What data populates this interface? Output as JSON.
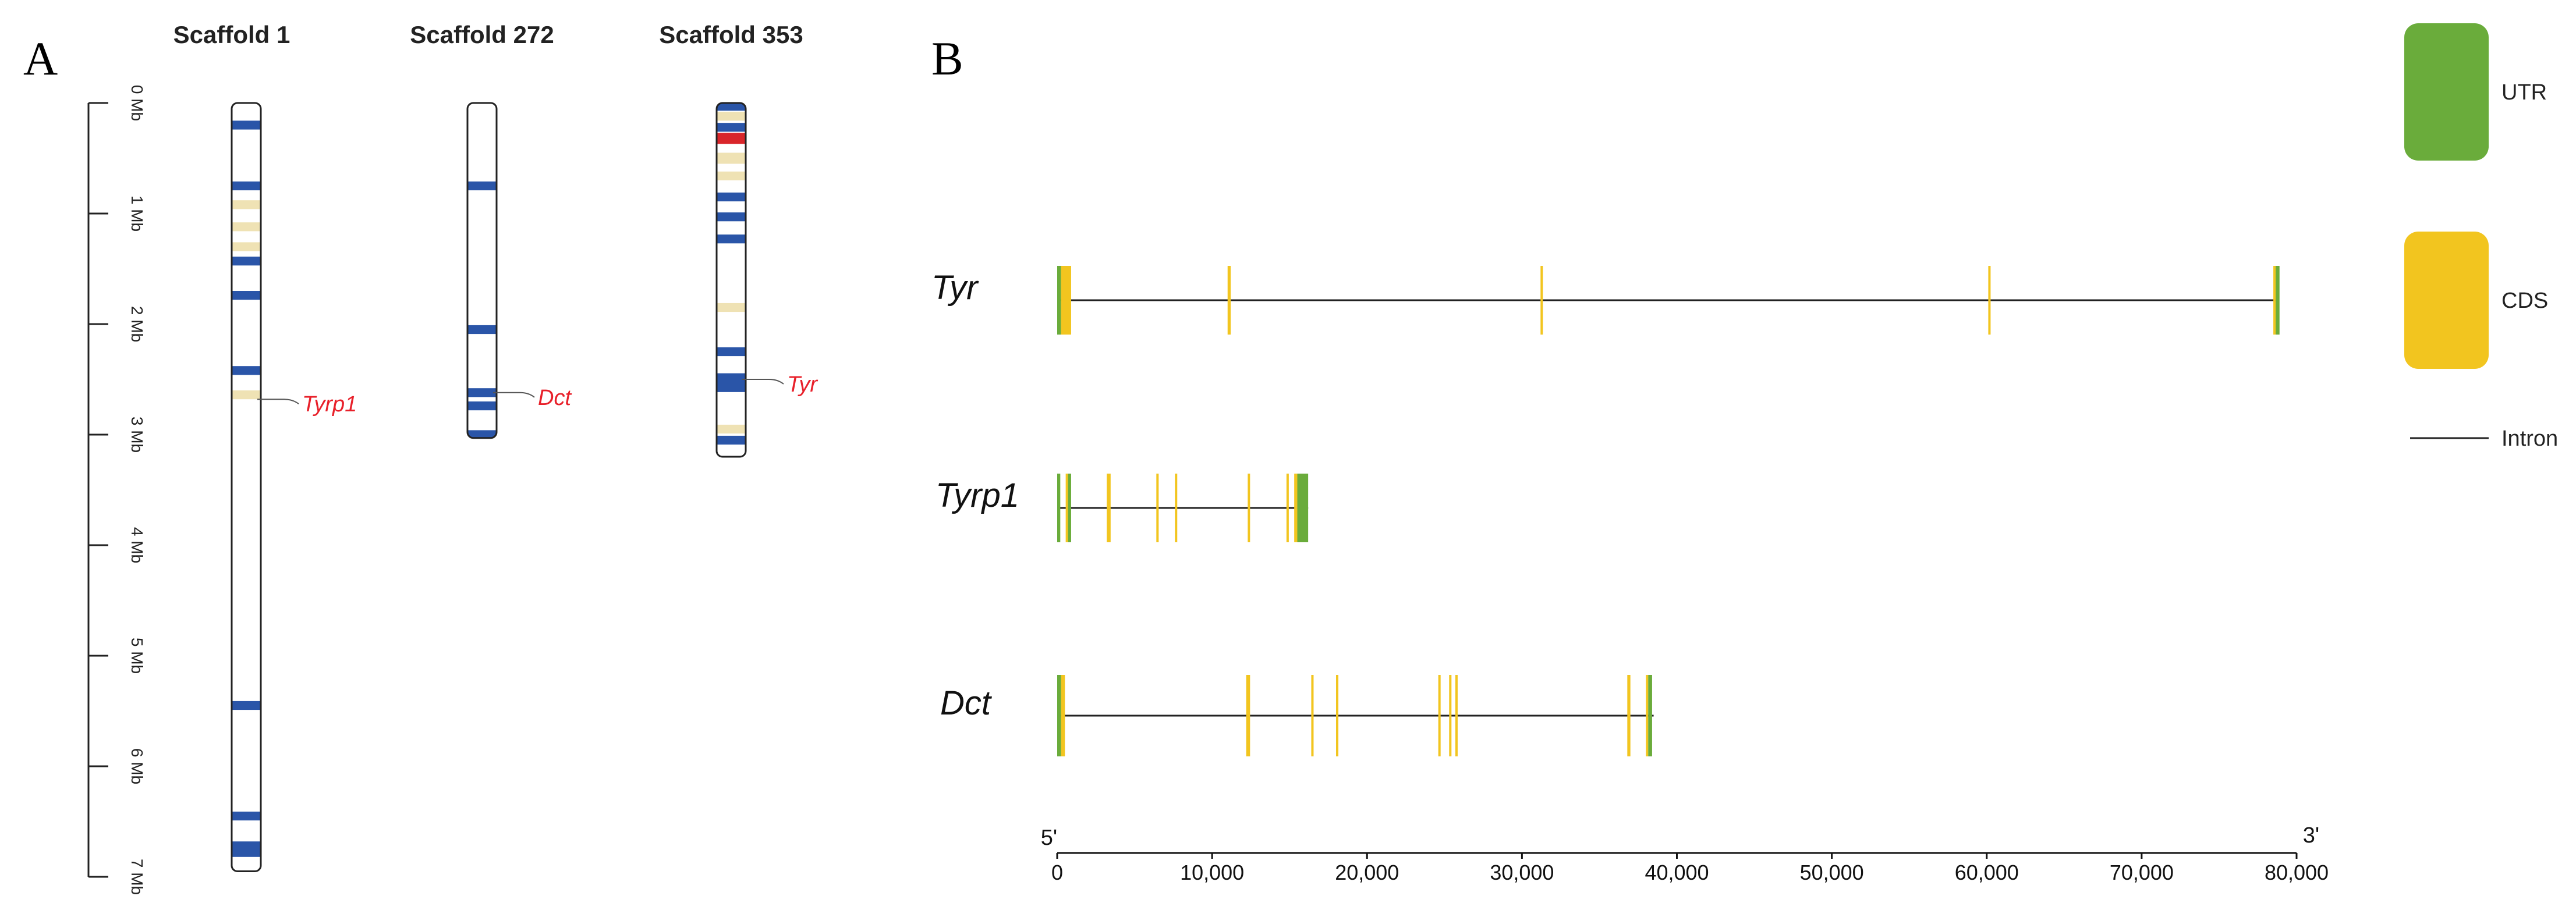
{
  "panel_a": {
    "letter": "A",
    "scale_labels": [
      "0 Mb",
      "1 Mb",
      "2 Mb",
      "3 Mb",
      "4 Mb",
      "5 Mb",
      "6 Mb",
      "7 Mb"
    ],
    "scale_max_mb": 7,
    "colors": {
      "blue": "#2a55a8",
      "tan": "#efe2b4",
      "red": "#d9252a",
      "annotation": "#e8202a"
    },
    "scaffolds": [
      {
        "name": "Scaffold 1",
        "length_mb": 6.95,
        "bands": [
          {
            "pos_mb": 0.2,
            "color": "blue"
          },
          {
            "pos_mb": 0.75,
            "color": "blue"
          },
          {
            "pos_mb": 0.92,
            "color": "tan"
          },
          {
            "pos_mb": 1.12,
            "color": "tan"
          },
          {
            "pos_mb": 1.3,
            "color": "tan"
          },
          {
            "pos_mb": 1.43,
            "color": "blue"
          },
          {
            "pos_mb": 1.74,
            "color": "blue"
          },
          {
            "pos_mb": 2.42,
            "color": "blue"
          },
          {
            "pos_mb": 2.64,
            "color": "tan"
          },
          {
            "pos_mb": 5.45,
            "color": "blue"
          },
          {
            "pos_mb": 6.45,
            "color": "blue"
          },
          {
            "pos_mb": 6.75,
            "color": "blue",
            "width_mb": 0.14
          }
        ],
        "annotation": {
          "gene": "Tyrp1",
          "pos_mb": 2.68
        }
      },
      {
        "name": "Scaffold 272",
        "length_mb": 3.03,
        "bands": [
          {
            "pos_mb": 0.75,
            "color": "blue"
          },
          {
            "pos_mb": 2.05,
            "color": "blue"
          },
          {
            "pos_mb": 2.62,
            "color": "blue"
          },
          {
            "pos_mb": 2.74,
            "color": "blue"
          },
          {
            "pos_mb": 3.0,
            "color": "blue"
          }
        ],
        "annotation": {
          "gene": "Dct",
          "pos_mb": 2.62
        }
      },
      {
        "name": "Scaffold 353",
        "length_mb": 3.2,
        "bands": [
          {
            "pos_mb": 0.03,
            "color": "blue"
          },
          {
            "pos_mb": 0.12,
            "color": "tan"
          },
          {
            "pos_mb": 0.22,
            "color": "blue",
            "width_mb": 0.08
          },
          {
            "pos_mb": 0.32,
            "color": "red",
            "width_mb": 0.1
          },
          {
            "pos_mb": 0.5,
            "color": "tan",
            "width_mb": 0.1
          },
          {
            "pos_mb": 0.66,
            "color": "tan"
          },
          {
            "pos_mb": 0.85,
            "color": "blue"
          },
          {
            "pos_mb": 1.03,
            "color": "blue"
          },
          {
            "pos_mb": 1.23,
            "color": "blue"
          },
          {
            "pos_mb": 1.85,
            "color": "tan"
          },
          {
            "pos_mb": 2.25,
            "color": "blue"
          },
          {
            "pos_mb": 2.53,
            "color": "blue",
            "width_mb": 0.17
          },
          {
            "pos_mb": 2.95,
            "color": "tan"
          },
          {
            "pos_mb": 3.05,
            "color": "blue"
          }
        ],
        "annotation": {
          "gene": "Tyr",
          "pos_mb": 2.5
        }
      }
    ]
  },
  "panel_b": {
    "letter": "B",
    "x_axis": {
      "min": 0,
      "max": 80000,
      "ticks": [
        0,
        10000,
        20000,
        30000,
        40000,
        50000,
        60000,
        70000,
        80000
      ],
      "tick_labels": [
        "0",
        "10,000",
        "20,000",
        "30,000",
        "40,000",
        "50,000",
        "60,000",
        "70,000",
        "80,000"
      ],
      "start_label": "5'",
      "end_label": "3'"
    },
    "colors": {
      "UTR": "#6aac3b",
      "CDS": "#f2c51f",
      "Intron": "#222222"
    },
    "legend": [
      {
        "label": "UTR",
        "kind": "box",
        "color_key": "UTR"
      },
      {
        "label": "CDS",
        "kind": "box",
        "color_key": "CDS"
      },
      {
        "label": "Intron",
        "kind": "line",
        "color_key": "Intron"
      }
    ],
    "genes": [
      {
        "name": "Tyr",
        "start": 0,
        "end": 78800,
        "features": [
          {
            "type": "UTR",
            "start": 0,
            "end": 250
          },
          {
            "type": "CDS",
            "start": 250,
            "end": 900
          },
          {
            "type": "CDS",
            "start": 11000,
            "end": 11200
          },
          {
            "type": "CDS",
            "start": 31200,
            "end": 31350
          },
          {
            "type": "CDS",
            "start": 60100,
            "end": 60250
          },
          {
            "type": "CDS",
            "start": 78500,
            "end": 78650
          },
          {
            "type": "UTR",
            "start": 78650,
            "end": 78900
          }
        ]
      },
      {
        "name": "Tyrp1",
        "start": 0,
        "end": 16200,
        "features": [
          {
            "type": "UTR",
            "start": 0,
            "end": 200
          },
          {
            "type": "CDS",
            "start": 550,
            "end": 700
          },
          {
            "type": "UTR",
            "start": 700,
            "end": 900
          },
          {
            "type": "CDS",
            "start": 3200,
            "end": 3450
          },
          {
            "type": "CDS",
            "start": 6400,
            "end": 6550
          },
          {
            "type": "CDS",
            "start": 7600,
            "end": 7750
          },
          {
            "type": "CDS",
            "start": 12300,
            "end": 12450
          },
          {
            "type": "CDS",
            "start": 14800,
            "end": 14950
          },
          {
            "type": "CDS",
            "start": 15300,
            "end": 15500
          },
          {
            "type": "UTR",
            "start": 15500,
            "end": 16200
          }
        ]
      },
      {
        "name": "Dct",
        "start": 0,
        "end": 38500,
        "features": [
          {
            "type": "UTR",
            "start": 0,
            "end": 250
          },
          {
            "type": "CDS",
            "start": 250,
            "end": 500
          },
          {
            "type": "CDS",
            "start": 12200,
            "end": 12450
          },
          {
            "type": "CDS",
            "start": 16400,
            "end": 16550
          },
          {
            "type": "CDS",
            "start": 18000,
            "end": 18150
          },
          {
            "type": "CDS",
            "start": 24600,
            "end": 24750
          },
          {
            "type": "CDS",
            "start": 25300,
            "end": 25450
          },
          {
            "type": "CDS",
            "start": 25700,
            "end": 25850
          },
          {
            "type": "CDS",
            "start": 36800,
            "end": 37000
          },
          {
            "type": "CDS",
            "start": 38000,
            "end": 38150
          },
          {
            "type": "UTR",
            "start": 38150,
            "end": 38400
          }
        ]
      }
    ]
  }
}
